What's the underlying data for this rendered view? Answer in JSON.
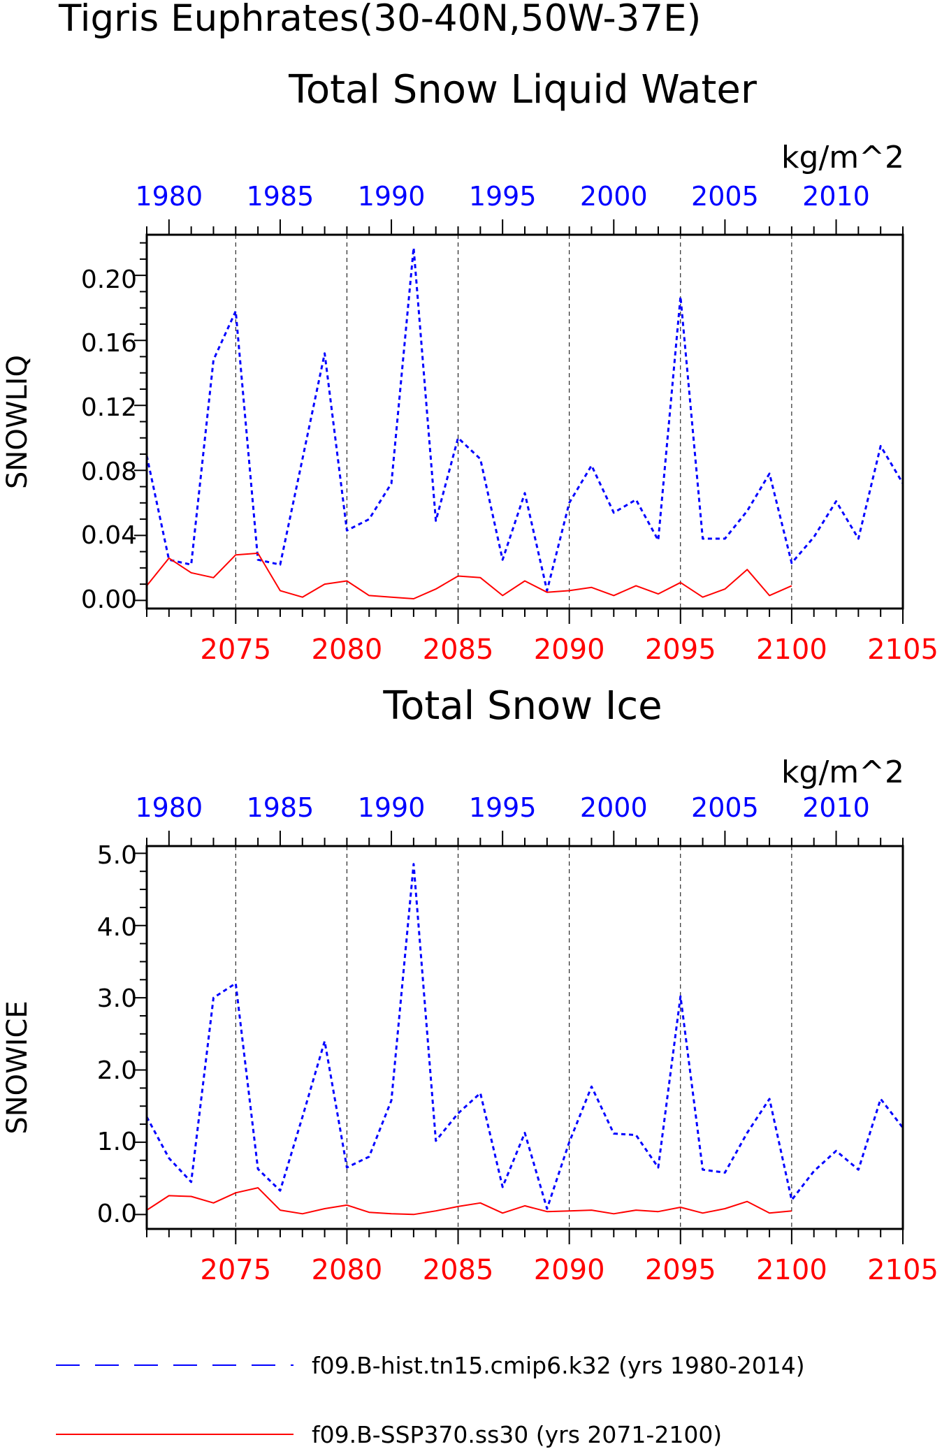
{
  "page": {
    "title_line1": "Tigris Euphrates(30-40N,50W-37E)"
  },
  "panels": [
    {
      "title": "Total Snow Liquid Water",
      "units": "kg/m^2",
      "ylabel": "SNOWLIQ",
      "ytick_labels": [
        "0.00",
        "0.04",
        "0.08",
        "0.12",
        "0.16",
        "0.20"
      ]
    },
    {
      "title": "Total Snow Ice",
      "units": "kg/m^2",
      "ylabel": "SNOWICE",
      "ytick_labels": [
        "0.0",
        "1.0",
        "2.0",
        "3.0",
        "4.0",
        "5.0"
      ]
    }
  ],
  "legend": {
    "hist_label": "f09.B-hist.tn15.cmip6.k32 (yrs 1980-2014)",
    "ssp_label": "f09.B-SSP370.ss30 (yrs 2071-2100)"
  },
  "colors": {
    "hist": "#0000ff",
    "ssp": "#ff0000",
    "axis": "#000000"
  },
  "chart_data": [
    {
      "type": "line",
      "title": "Total Snow Liquid Water",
      "ylabel": "SNOWLIQ",
      "units": "kg/m^2",
      "ylim": [
        -0.005,
        0.225
      ],
      "yticks": [
        0.0,
        0.04,
        0.08,
        0.12,
        0.16,
        0.2
      ],
      "x_top": {
        "label": "",
        "range": [
          1979,
          2013
        ],
        "ticks": [
          1980,
          1985,
          1990,
          1995,
          2000,
          2005,
          2010
        ],
        "tick_labels": [
          "1980",
          "1985",
          "1990",
          "1995",
          "2000",
          "2005",
          "2010"
        ]
      },
      "x_bottom": {
        "label": "",
        "range": [
          2071,
          2105
        ],
        "ticks": [
          2075,
          2080,
          2085,
          2090,
          2095,
          2100,
          2105
        ],
        "tick_labels": [
          "2075",
          "2080",
          "2085",
          "2090",
          "2095",
          "2100",
          "2105"
        ]
      },
      "grid": "vertical dashed at major ticks",
      "series": [
        {
          "name": "f09.B-hist.tn15.cmip6.k32 (yrs 1980-2014)",
          "axis": "top",
          "style": "dashed",
          "x": [
            1979,
            1980,
            1981,
            1982,
            1983,
            1984,
            1985,
            1986,
            1987,
            1988,
            1989,
            1990,
            1991,
            1992,
            1993,
            1994,
            1995,
            1996,
            1997,
            1998,
            1999,
            2000,
            2001,
            2002,
            2003,
            2004,
            2005,
            2006,
            2007,
            2008,
            2009,
            2010,
            2011,
            2012,
            2013
          ],
          "values": [
            0.089,
            0.025,
            0.022,
            0.148,
            0.178,
            0.025,
            0.022,
            0.087,
            0.152,
            0.043,
            0.05,
            0.072,
            0.217,
            0.049,
            0.1,
            0.087,
            0.025,
            0.066,
            0.006,
            0.06,
            0.083,
            0.054,
            0.062,
            0.037,
            0.187,
            0.038,
            0.038,
            0.055,
            0.078,
            0.023,
            0.039,
            0.061,
            0.038,
            0.095,
            0.072
          ]
        },
        {
          "name": "f09.B-SSP370.ss30 (yrs 2071-2100)",
          "axis": "bottom",
          "style": "solid",
          "x": [
            2071,
            2072,
            2073,
            2074,
            2075,
            2076,
            2077,
            2078,
            2079,
            2080,
            2081,
            2082,
            2083,
            2084,
            2085,
            2086,
            2087,
            2088,
            2089,
            2090,
            2091,
            2092,
            2093,
            2094,
            2095,
            2096,
            2097,
            2098,
            2099,
            2100
          ],
          "values": [
            0.009,
            0.026,
            0.017,
            0.014,
            0.028,
            0.029,
            0.006,
            0.002,
            0.01,
            0.012,
            0.003,
            0.002,
            0.001,
            0.007,
            0.015,
            0.014,
            0.003,
            0.012,
            0.005,
            0.006,
            0.008,
            0.003,
            0.009,
            0.004,
            0.011,
            0.002,
            0.007,
            0.019,
            0.003,
            0.009
          ]
        }
      ]
    },
    {
      "type": "line",
      "title": "Total Snow Ice",
      "ylabel": "SNOWICE",
      "units": "kg/m^2",
      "ylim": [
        -0.2,
        5.1
      ],
      "yticks": [
        0.0,
        1.0,
        2.0,
        3.0,
        4.0,
        5.0
      ],
      "x_top": {
        "label": "",
        "range": [
          1979,
          2013
        ],
        "ticks": [
          1980,
          1985,
          1990,
          1995,
          2000,
          2005,
          2010
        ],
        "tick_labels": [
          "1980",
          "1985",
          "1990",
          "1995",
          "2000",
          "2005",
          "2010"
        ]
      },
      "x_bottom": {
        "label": "",
        "range": [
          2071,
          2105
        ],
        "ticks": [
          2075,
          2080,
          2085,
          2090,
          2095,
          2100,
          2105
        ],
        "tick_labels": [
          "2075",
          "2080",
          "2085",
          "2090",
          "2095",
          "2100",
          "2105"
        ]
      },
      "grid": "vertical dashed at major ticks",
      "series": [
        {
          "name": "f09.B-hist.tn15.cmip6.k32 (yrs 1980-2014)",
          "axis": "top",
          "style": "dashed",
          "x": [
            1979,
            1980,
            1981,
            1982,
            1983,
            1984,
            1985,
            1986,
            1987,
            1988,
            1989,
            1990,
            1991,
            1992,
            1993,
            1994,
            1995,
            1996,
            1997,
            1998,
            1999,
            2000,
            2001,
            2002,
            2003,
            2004,
            2005,
            2006,
            2007,
            2008,
            2009,
            2010,
            2011,
            2012,
            2013
          ],
          "values": [
            1.35,
            0.78,
            0.45,
            3.0,
            3.2,
            0.63,
            0.33,
            1.35,
            2.4,
            0.65,
            0.8,
            1.58,
            4.85,
            1.02,
            1.4,
            1.68,
            0.38,
            1.13,
            0.08,
            1.0,
            1.77,
            1.12,
            1.1,
            0.65,
            3.02,
            0.62,
            0.58,
            1.13,
            1.6,
            0.2,
            0.6,
            0.88,
            0.62,
            1.6,
            1.2
          ]
        },
        {
          "name": "f09.B-SSP370.ss30 (yrs 2071-2100)",
          "axis": "bottom",
          "style": "solid",
          "x": [
            2071,
            2072,
            2073,
            2074,
            2075,
            2076,
            2077,
            2078,
            2079,
            2080,
            2081,
            2082,
            2083,
            2084,
            2085,
            2086,
            2087,
            2088,
            2089,
            2090,
            2091,
            2092,
            2093,
            2094,
            2095,
            2096,
            2097,
            2098,
            2099,
            2100
          ],
          "values": [
            0.06,
            0.26,
            0.25,
            0.16,
            0.3,
            0.37,
            0.06,
            0.01,
            0.08,
            0.13,
            0.03,
            0.01,
            0.0,
            0.05,
            0.11,
            0.16,
            0.02,
            0.12,
            0.04,
            0.05,
            0.06,
            0.01,
            0.06,
            0.04,
            0.1,
            0.02,
            0.08,
            0.18,
            0.02,
            0.05
          ]
        }
      ]
    }
  ]
}
